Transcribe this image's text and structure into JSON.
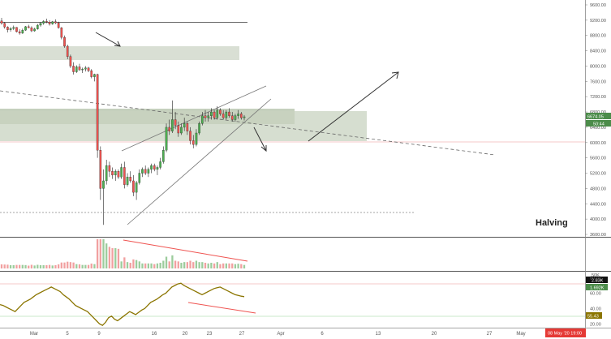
{
  "chart_data": [
    {
      "type": "candlestick",
      "annotation": "Halving",
      "y_ticks": [
        "9600.00",
        "9200.00",
        "8800.00",
        "8400.00",
        "8000.00",
        "7600.00",
        "7200.00",
        "6800.00",
        "6400.00",
        "6000.00",
        "5600.00",
        "5200.00",
        "4800.00",
        "4400.00",
        "4000.00",
        "3600.00"
      ],
      "ylim": [
        3500,
        9800
      ],
      "x_ticks": [
        "Mar",
        "5",
        "9",
        "16",
        "20",
        "23",
        "27",
        "Apr",
        "6",
        "13",
        "20",
        "27",
        "May"
      ],
      "price_tag": "6674.05",
      "countdown_tag": "50:44",
      "time_tag": "08 May '20  19:00",
      "colors": {
        "up": "#4caf50",
        "down": "#ef5350",
        "zone": "#c8d3c0",
        "accent": "#000000"
      },
      "ohlc": [
        [
          9180,
          9260,
          9080,
          9120
        ],
        [
          9120,
          9150,
          8980,
          9020
        ],
        [
          9020,
          9040,
          8880,
          8950
        ],
        [
          8950,
          9020,
          8900,
          8980
        ],
        [
          8980,
          9060,
          8940,
          9010
        ],
        [
          9010,
          9020,
          8880,
          8900
        ],
        [
          8900,
          8960,
          8820,
          8860
        ],
        [
          8860,
          8980,
          8840,
          8940
        ],
        [
          8940,
          9050,
          8920,
          9030
        ],
        [
          9030,
          9080,
          8990,
          9000
        ],
        [
          9000,
          9040,
          8890,
          8920
        ],
        [
          8920,
          9000,
          8900,
          8970
        ],
        [
          8970,
          9100,
          8950,
          9070
        ],
        [
          9070,
          9150,
          9030,
          9120
        ],
        [
          9120,
          9200,
          9080,
          9170
        ],
        [
          9170,
          9240,
          9120,
          9150
        ],
        [
          9150,
          9200,
          9060,
          9100
        ],
        [
          9100,
          9180,
          9080,
          9160
        ],
        [
          9160,
          9220,
          9100,
          9130
        ],
        [
          9130,
          9160,
          8980,
          9000
        ],
        [
          9000,
          9020,
          8700,
          8750
        ],
        [
          8750,
          8800,
          8480,
          8520
        ],
        [
          8520,
          8560,
          8180,
          8250
        ],
        [
          8250,
          8300,
          7950,
          8000
        ],
        [
          8000,
          8100,
          7780,
          7850
        ],
        [
          7850,
          8020,
          7820,
          7980
        ],
        [
          7980,
          8060,
          7880,
          7900
        ],
        [
          7900,
          7960,
          7820,
          7920
        ],
        [
          7920,
          8000,
          7860,
          7950
        ],
        [
          7950,
          7980,
          7840,
          7880
        ],
        [
          7880,
          7920,
          7680,
          7720
        ],
        [
          7720,
          7800,
          7600,
          7780
        ],
        [
          7780,
          7800,
          5600,
          5800
        ],
        [
          5800,
          5900,
          4500,
          4800
        ],
        [
          4800,
          5300,
          3850,
          5000
        ],
        [
          5000,
          5550,
          4900,
          5400
        ],
        [
          5400,
          5500,
          5100,
          5250
        ],
        [
          5250,
          5350,
          5050,
          5150
        ],
        [
          5150,
          5300,
          5000,
          5250
        ],
        [
          5250,
          5300,
          5050,
          5100
        ],
        [
          5100,
          5450,
          5050,
          5350
        ],
        [
          5350,
          5500,
          4800,
          4900
        ],
        [
          4900,
          5200,
          4850,
          5100
        ],
        [
          5100,
          5250,
          4950,
          5000
        ],
        [
          5000,
          5150,
          4600,
          4700
        ],
        [
          4700,
          5000,
          4500,
          4950
        ],
        [
          4950,
          5300,
          4900,
          5200
        ],
        [
          5200,
          5350,
          5100,
          5300
        ],
        [
          5300,
          5400,
          5150,
          5200
        ],
        [
          5200,
          5350,
          5100,
          5300
        ],
        [
          5300,
          5450,
          5200,
          5400
        ],
        [
          5400,
          5450,
          5250,
          5300
        ],
        [
          5300,
          5400,
          5150,
          5350
        ],
        [
          5350,
          5600,
          5300,
          5500
        ],
        [
          5500,
          5900,
          5450,
          5800
        ],
        [
          5800,
          6500,
          5750,
          6400
        ],
        [
          6400,
          6600,
          6200,
          6300
        ],
        [
          6300,
          7100,
          6250,
          6600
        ],
        [
          6600,
          6800,
          6350,
          6450
        ],
        [
          6450,
          6550,
          6150,
          6250
        ],
        [
          6250,
          6500,
          6200,
          6400
        ],
        [
          6400,
          6650,
          6300,
          6500
        ],
        [
          6500,
          6550,
          6200,
          6300
        ],
        [
          6300,
          6400,
          5950,
          6050
        ],
        [
          6050,
          6200,
          5850,
          5950
        ],
        [
          5950,
          6350,
          5900,
          6250
        ],
        [
          6250,
          6550,
          6200,
          6500
        ],
        [
          6500,
          6800,
          6450,
          6700
        ],
        [
          6700,
          6850,
          6550,
          6650
        ],
        [
          6650,
          6800,
          6550,
          6700
        ],
        [
          6700,
          6900,
          6600,
          6800
        ],
        [
          6800,
          6850,
          6600,
          6650
        ],
        [
          6650,
          6950,
          6600,
          6850
        ],
        [
          6850,
          6900,
          6700,
          6750
        ],
        [
          6750,
          6850,
          6600,
          6650
        ],
        [
          6650,
          6850,
          6600,
          6800
        ],
        [
          6800,
          6900,
          6650,
          6700
        ],
        [
          6700,
          6800,
          6550,
          6600
        ],
        [
          6600,
          6750,
          6550,
          6700
        ],
        [
          6700,
          6850,
          6620,
          6750
        ],
        [
          6750,
          6800,
          6600,
          6650
        ],
        [
          6650,
          6720,
          6580,
          6674
        ]
      ]
    },
    {
      "type": "bar",
      "y_ticks": [
        "50K"
      ],
      "tags": [
        "2.83K",
        "1.692K"
      ]
    },
    {
      "type": "line",
      "y_ticks": [
        "80.00",
        "60.00",
        "40.00",
        "20.00"
      ],
      "ylim": [
        15,
        88
      ],
      "last_tag": "55.43",
      "values": [
        45,
        44,
        42,
        40,
        38,
        36,
        40,
        44,
        48,
        50,
        52,
        55,
        58,
        60,
        62,
        64,
        66,
        68,
        66,
        64,
        62,
        58,
        55,
        52,
        48,
        44,
        42,
        40,
        38,
        36,
        32,
        28,
        24,
        20,
        18,
        22,
        28,
        30,
        26,
        24,
        27,
        30,
        33,
        36,
        34,
        32,
        35,
        38,
        40,
        44,
        48,
        50,
        52,
        55,
        58,
        60,
        64,
        68,
        70,
        72,
        73,
        70,
        68,
        66,
        64,
        62,
        60,
        58,
        60,
        62,
        64,
        66,
        67,
        68,
        66,
        64,
        62,
        60,
        58,
        57,
        56,
        55.43
      ]
    }
  ]
}
